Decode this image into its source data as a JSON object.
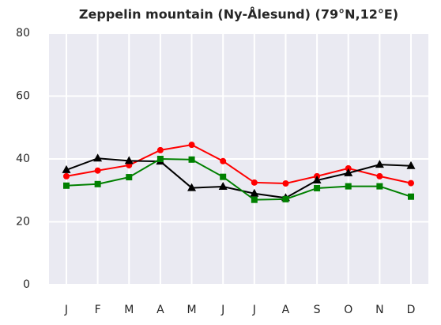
{
  "chart_data": {
    "type": "line",
    "title": "Zeppelin mountain (Ny-Ålesund) (79°N,12°E)",
    "categories": [
      "J",
      "F",
      "M",
      "A",
      "M",
      "J",
      "J",
      "A",
      "S",
      "O",
      "N",
      "D"
    ],
    "series": [
      {
        "color": "#ff0000",
        "marker": "circle",
        "values": [
          34.5,
          36.3,
          38,
          42.8,
          44.5,
          39.3,
          32.5,
          32.2,
          34.5,
          37,
          34.5,
          32.3
        ]
      },
      {
        "color": "#000000",
        "marker": "triangle",
        "values": [
          36.5,
          40.2,
          39.4,
          39.2,
          30.8,
          31.2,
          29,
          27.6,
          33.2,
          35.5,
          38.2,
          37.8
        ]
      },
      {
        "color": "#008000",
        "marker": "square",
        "values": [
          31.5,
          32,
          34.2,
          40,
          39.8,
          34.3,
          27,
          27.2,
          30.7,
          31.3,
          31.3,
          28
        ]
      }
    ],
    "ylim": [
      0,
      80
    ],
    "yticks": [
      0,
      20,
      40,
      60,
      80
    ],
    "grid": true
  }
}
